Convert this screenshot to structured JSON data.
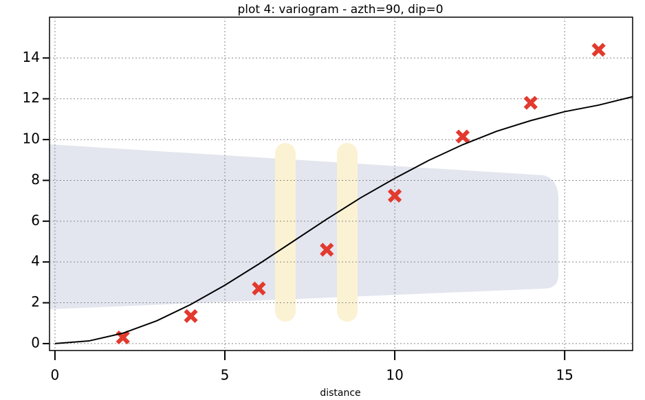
{
  "chart_data": {
    "type": "scatter",
    "title": "plot 4:  variogram - azth=90, dip=0",
    "x_label": "distance",
    "xlim": [
      -0.16,
      17
    ],
    "ylim": [
      -0.34,
      16
    ],
    "xticks": [
      0,
      5,
      10,
      15
    ],
    "yticks": [
      0,
      2,
      4,
      6,
      8,
      10,
      12,
      14
    ],
    "grid": true,
    "series": [
      {
        "style": "marker",
        "color": "#e23a2e",
        "x": [
          2,
          4,
          6,
          8,
          10,
          12,
          14,
          16
        ],
        "values": [
          0.3,
          1.35,
          2.7,
          4.6,
          7.25,
          10.15,
          11.8,
          14.4
        ]
      },
      {
        "style": "line",
        "color": "#000000",
        "x": [
          0,
          1,
          2,
          3,
          4,
          5,
          6,
          7,
          8,
          9,
          10,
          11,
          12,
          13,
          14,
          15,
          16,
          17
        ],
        "values": [
          0,
          0.13,
          0.51,
          1.12,
          1.92,
          2.86,
          3.9,
          5.0,
          6.1,
          7.15,
          8.1,
          8.98,
          9.75,
          10.41,
          10.93,
          11.37,
          11.69,
          12.1
        ]
      }
    ]
  }
}
